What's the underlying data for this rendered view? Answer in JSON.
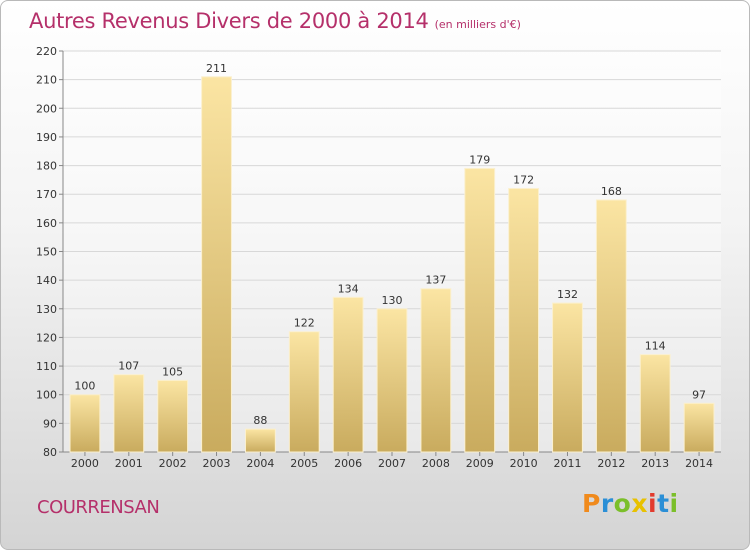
{
  "chart_data": {
    "type": "bar",
    "title": "Autres Revenus Divers de 2000 à 2014",
    "subtitle": "(en milliers d'€)",
    "categories": [
      "2000",
      "2001",
      "2002",
      "2003",
      "2004",
      "2005",
      "2006",
      "2007",
      "2008",
      "2009",
      "2010",
      "2011",
      "2012",
      "2013",
      "2014"
    ],
    "values": [
      100,
      107,
      105,
      211,
      88,
      122,
      134,
      130,
      137,
      179,
      172,
      132,
      168,
      114,
      97
    ],
    "ylim": [
      80,
      220
    ],
    "yticks": [
      80,
      90,
      100,
      110,
      120,
      130,
      140,
      150,
      160,
      170,
      180,
      190,
      200,
      210,
      220
    ],
    "grid": true,
    "colors": {
      "bar_light": "#fbe5a3",
      "bar_dark": "#c9ab5e",
      "title": "#b5306a"
    }
  },
  "footer": {
    "city": "COURRENSAN",
    "logo": {
      "letters": [
        "P",
        "r",
        "o",
        "x",
        "i",
        "t",
        "i"
      ],
      "colors": [
        "#f08a1c",
        "#2b8fd6",
        "#7bbf2a",
        "#e8c100",
        "#e23b2e",
        "#2b8fd6",
        "#7bbf2a"
      ]
    }
  }
}
